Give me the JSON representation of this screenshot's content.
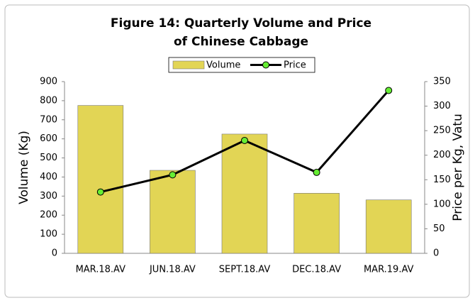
{
  "chart_data": {
    "type": "bar",
    "title": "Figure 14: Quarterly Volume and Price of Chinese Cabbage",
    "categories": [
      "MAR.18.AV",
      "JUN.18.AV",
      "SEPT.18.AV",
      "DEC.18.AV",
      "MAR.19.AV"
    ],
    "series": [
      {
        "name": "Volume",
        "type": "bar",
        "color": "#e2d555",
        "values": [
          775,
          435,
          625,
          315,
          280
        ]
      },
      {
        "name": "Price",
        "type": "line",
        "axis": "y2",
        "color": "#000000",
        "marker_color": "#66ee33",
        "values": [
          125,
          160,
          230,
          165,
          332
        ]
      }
    ],
    "ylabel": "Volume (Kg)",
    "y2label": "Price per Kg, Vatu",
    "ylim": [
      0,
      900
    ],
    "yticks": [
      0,
      100,
      200,
      300,
      400,
      500,
      600,
      700,
      800,
      900
    ],
    "y2lim": [
      0,
      350
    ],
    "y2ticks": [
      0,
      50,
      100,
      150,
      200,
      250,
      300,
      350
    ],
    "legend": "top"
  }
}
